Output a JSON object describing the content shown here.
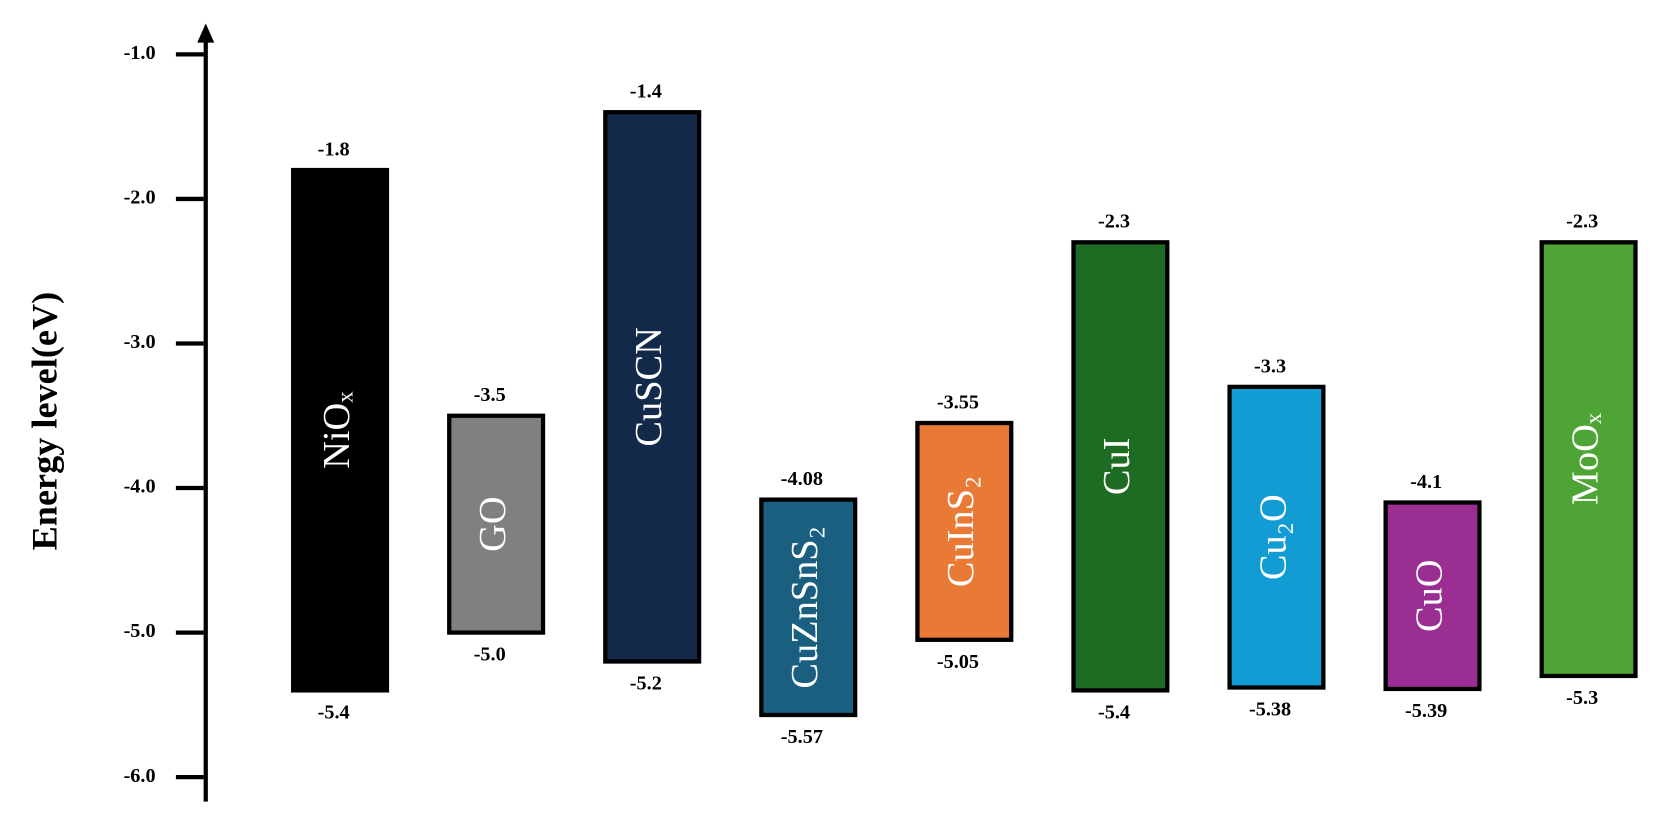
{
  "chart_data": {
    "type": "floating_bar",
    "y_label": "Energy level(eV)",
    "categories": [
      "NiOₓ",
      "GO",
      "CuSCN",
      "CuZnSnS₂",
      "CuInS₂",
      "CuI",
      "Cu₂O",
      "CuO",
      "MoOₓ"
    ],
    "top": [
      -1.8,
      -3.5,
      -1.4,
      -4.08,
      -3.55,
      -2.3,
      -3.3,
      -4.1,
      -2.3
    ],
    "top_labels": [
      "-1.8",
      "-3.5",
      "-1.4",
      "-4.08",
      "-3.55",
      "-2.3",
      "-3.3",
      "-4.1",
      "-2.3"
    ],
    "bottom": [
      -5.4,
      -5.0,
      -5.2,
      -5.57,
      -5.05,
      -5.4,
      -5.38,
      -5.39,
      -5.3
    ],
    "bottom_labels": [
      "-5.4",
      "-5.0",
      "-5.2",
      "-5.57",
      "-5.05",
      "-5.4",
      "-5.38",
      "-5.39",
      "-5.3"
    ],
    "colors": [
      "#000000",
      "#808080",
      "#13294a",
      "#1a5f80",
      "#e87a35",
      "#1e6b23",
      "#139bd4",
      "#9b2e93",
      "#4ea535"
    ],
    "ylim": [
      -6.0,
      -1.0
    ],
    "yticks": [
      {
        "value": -1.0,
        "label": "-1.0"
      },
      {
        "value": -2.0,
        "label": "-2.0"
      },
      {
        "value": -3.0,
        "label": "-3.0"
      },
      {
        "value": -4.0,
        "label": "-4.0"
      },
      {
        "value": -5.0,
        "label": "-5.0"
      },
      {
        "value": -6.0,
        "label": "-6.0"
      }
    ]
  }
}
